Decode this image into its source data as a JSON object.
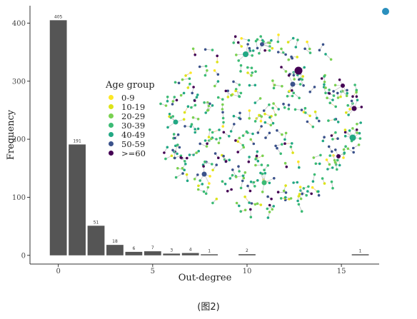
{
  "caption": "(图2)",
  "chart_data": {
    "type": "bar",
    "title": "",
    "xlabel": "Out-degree",
    "ylabel": "Frequency",
    "xlim": [
      -1.5,
      17
    ],
    "ylim": [
      -15,
      430
    ],
    "x_ticks": [
      0,
      5,
      10,
      15
    ],
    "y_ticks": [
      0,
      100,
      200,
      300,
      400
    ],
    "x": [
      0,
      1,
      2,
      3,
      4,
      5,
      6,
      7,
      8,
      10,
      16
    ],
    "values": [
      405,
      191,
      51,
      18,
      6,
      7,
      3,
      4,
      1,
      2,
      1
    ],
    "data_labels": [
      "405",
      "191",
      "51",
      "18",
      "6",
      "7",
      "3",
      "4",
      "1",
      "2",
      "1"
    ],
    "bar_color": "#555555",
    "legend": {
      "title": "Age group",
      "placement": "left of network inset",
      "items": [
        {
          "label": "0-9",
          "color": "#FDE725"
        },
        {
          "label": "10-19",
          "color": "#DCE319"
        },
        {
          "label": "20-29",
          "color": "#7AD151"
        },
        {
          "label": "30-39",
          "color": "#3CBB75"
        },
        {
          "label": "40-49",
          "color": "#22A884"
        },
        {
          "label": "50-59",
          "color": "#3B528B"
        },
        {
          "label": ">=60",
          "color": "#440154"
        }
      ]
    },
    "inset": "network of transmission clusters, nodes colored by age group"
  }
}
